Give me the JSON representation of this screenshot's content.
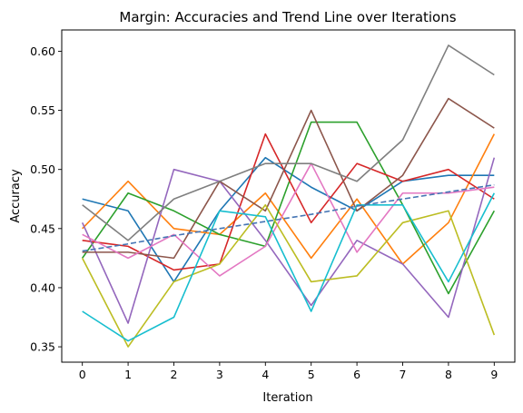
{
  "chart_data": {
    "type": "line",
    "title": "Margin: Accuracies and Trend Line over Iterations",
    "xlabel": "Iteration",
    "ylabel": "Accuracy",
    "xlim": [
      -0.45,
      9.45
    ],
    "ylim": [
      0.337,
      0.618
    ],
    "xticks": [
      0,
      1,
      2,
      3,
      4,
      5,
      6,
      7,
      8,
      9
    ],
    "yticks": [
      0.35,
      0.4,
      0.45,
      0.5,
      0.55,
      0.6
    ],
    "ytick_labels": [
      "0.35",
      "0.40",
      "0.45",
      "0.50",
      "0.55",
      "0.60"
    ],
    "grid": false,
    "x": [
      0,
      1,
      2,
      3,
      4,
      5,
      6,
      7,
      8,
      9
    ],
    "series": [
      {
        "color": "#1f77b4",
        "values": [
          0.475,
          0.465,
          0.405,
          0.465,
          0.51,
          0.485,
          0.465,
          0.49,
          0.495,
          0.495
        ]
      },
      {
        "color": "#ff7f0e",
        "values": [
          0.45,
          0.49,
          0.45,
          0.445,
          0.48,
          0.425,
          0.475,
          0.42,
          0.455,
          0.53
        ]
      },
      {
        "color": "#2ca02c",
        "values": [
          0.425,
          0.48,
          0.465,
          0.445,
          0.435,
          0.54,
          0.54,
          0.47,
          0.395,
          0.465
        ]
      },
      {
        "color": "#d62728",
        "values": [
          0.44,
          0.435,
          0.415,
          0.42,
          0.53,
          0.455,
          0.505,
          0.49,
          0.5,
          0.475
        ]
      },
      {
        "color": "#9467bd",
        "values": [
          0.455,
          0.37,
          0.5,
          0.49,
          0.44,
          0.385,
          0.44,
          0.42,
          0.375,
          0.51
        ]
      },
      {
        "color": "#8c564b",
        "values": [
          0.43,
          0.43,
          0.425,
          0.49,
          0.465,
          0.55,
          0.465,
          0.495,
          0.56,
          0.535
        ]
      },
      {
        "color": "#e377c2",
        "values": [
          0.445,
          0.425,
          0.445,
          0.41,
          0.435,
          0.505,
          0.43,
          0.48,
          0.48,
          0.485
        ]
      },
      {
        "color": "#7f7f7f",
        "values": [
          0.47,
          0.44,
          0.475,
          0.49,
          0.505,
          0.505,
          0.49,
          0.525,
          0.605,
          0.58
        ]
      },
      {
        "color": "#bcbd22",
        "values": [
          0.425,
          0.35,
          0.405,
          0.42,
          0.47,
          0.405,
          0.41,
          0.455,
          0.465,
          0.36
        ]
      },
      {
        "color": "#17becf",
        "values": [
          0.38,
          0.355,
          0.375,
          0.465,
          0.46,
          0.38,
          0.47,
          0.47,
          0.405,
          0.48
        ]
      }
    ],
    "trend": {
      "color": "#4575b4",
      "dashed": true,
      "values": [
        0.431,
        0.437,
        0.444,
        0.45,
        0.456,
        0.462,
        0.469,
        0.475,
        0.481,
        0.487
      ]
    }
  }
}
